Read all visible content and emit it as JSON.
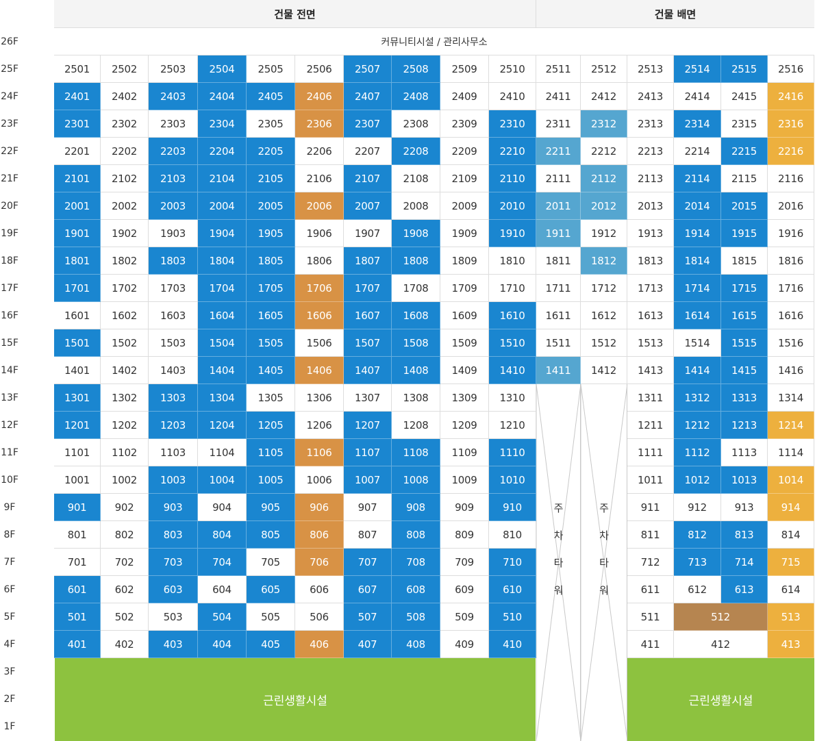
{
  "headers": {
    "front": "건물 전면",
    "back": "건물 배면"
  },
  "community": "커뮤니티시설 / 관리사무소",
  "commercial": "근린생활시설",
  "tower_chars": [
    "주",
    "차",
    "타",
    "워"
  ],
  "floors": [
    "26F",
    "25F",
    "24F",
    "23F",
    "22F",
    "21F",
    "20F",
    "19F",
    "18F",
    "17F",
    "16F",
    "15F",
    "14F",
    "13F",
    "12F",
    "11F",
    "10F",
    "9F",
    "8F",
    "7F",
    "6F",
    "5F",
    "4F",
    "3F",
    "2F",
    "1F"
  ],
  "colors": {
    "blue": "#1a86d0",
    "sky": "#55a6d0",
    "orange": "#d89245",
    "gold": "#edb03e",
    "brown": "#b68550",
    "green": "#8dc23f"
  },
  "status_codes": {
    "w": "white",
    "b": "blue",
    "s": "sky",
    "o": "orange",
    "g": "gold",
    "n": "brown"
  },
  "rows_high": [
    {
      "floor": 25,
      "codes": "wwwbwwbbwwwwwbbw"
    },
    {
      "floor": 24,
      "codes": "bwbbbobbwwwwwwwg"
    },
    {
      "floor": 23,
      "codes": "bwwbwobwwbwswbwg"
    },
    {
      "floor": 22,
      "codes": "wwbbbwwbwbswwwbg"
    },
    {
      "floor": 21,
      "codes": "bwbbbwbwwbwswbww"
    },
    {
      "floor": 20,
      "codes": "bwbbbobwwbsswbbw"
    },
    {
      "floor": 19,
      "codes": "bwwbbwwbwbswwbbw"
    },
    {
      "floor": 18,
      "codes": "bwbbbwbbwwwswbww"
    },
    {
      "floor": 17,
      "codes": "bwwbbobwwwwwwbbw"
    },
    {
      "floor": 16,
      "codes": "wwwbbobbwbwwwbbw"
    },
    {
      "floor": 15,
      "codes": "bwwbbwbbwbwwwwbw"
    },
    {
      "floor": 14,
      "codes": "wwwbbobbwbswwbbw"
    }
  ],
  "rows_low": [
    {
      "floor": 13,
      "front": "bwbbwwwwww",
      "back": "wbbw"
    },
    {
      "floor": 12,
      "front": "bwbbbwbwww",
      "back": "wbbg"
    },
    {
      "floor": 11,
      "front": "wwwwbobbwb",
      "back": "wbww"
    },
    {
      "floor": 10,
      "front": "wwbbbwbbwb",
      "back": "wbbg"
    },
    {
      "floor": 9,
      "front": "bwbwbowbwb",
      "back": "wwwg"
    },
    {
      "floor": 8,
      "front": "wwbbbowbww",
      "back": "wbbw"
    },
    {
      "floor": 7,
      "front": "wwbbwobbwb",
      "back": "wbbg"
    },
    {
      "floor": 6,
      "front": "bwbwbwbbwb",
      "back": "wwbw"
    },
    {
      "floor": 5,
      "front": "bwwbwwbbwb",
      "back": "wng"
    },
    {
      "floor": 4,
      "front": "bwbbbobbwb",
      "back": "wwg"
    }
  ],
  "back_units_low": {
    "13": [
      "1311",
      "1312",
      "1313",
      "1314"
    ],
    "12": [
      "1211",
      "1212",
      "1213",
      "1214"
    ],
    "11": [
      "1111",
      "1112",
      "1113",
      "1114"
    ],
    "10": [
      "1011",
      "1012",
      "1013",
      "1014"
    ],
    "9": [
      "911",
      "912",
      "913",
      "914"
    ],
    "8": [
      "811",
      "812",
      "813",
      "814"
    ],
    "7": [
      "712",
      "713",
      "714",
      "715"
    ],
    "6": [
      "611",
      "612",
      "613",
      "614"
    ],
    "5": [
      "511",
      "512",
      "513"
    ],
    "4": [
      "411",
      "412",
      "413"
    ]
  }
}
